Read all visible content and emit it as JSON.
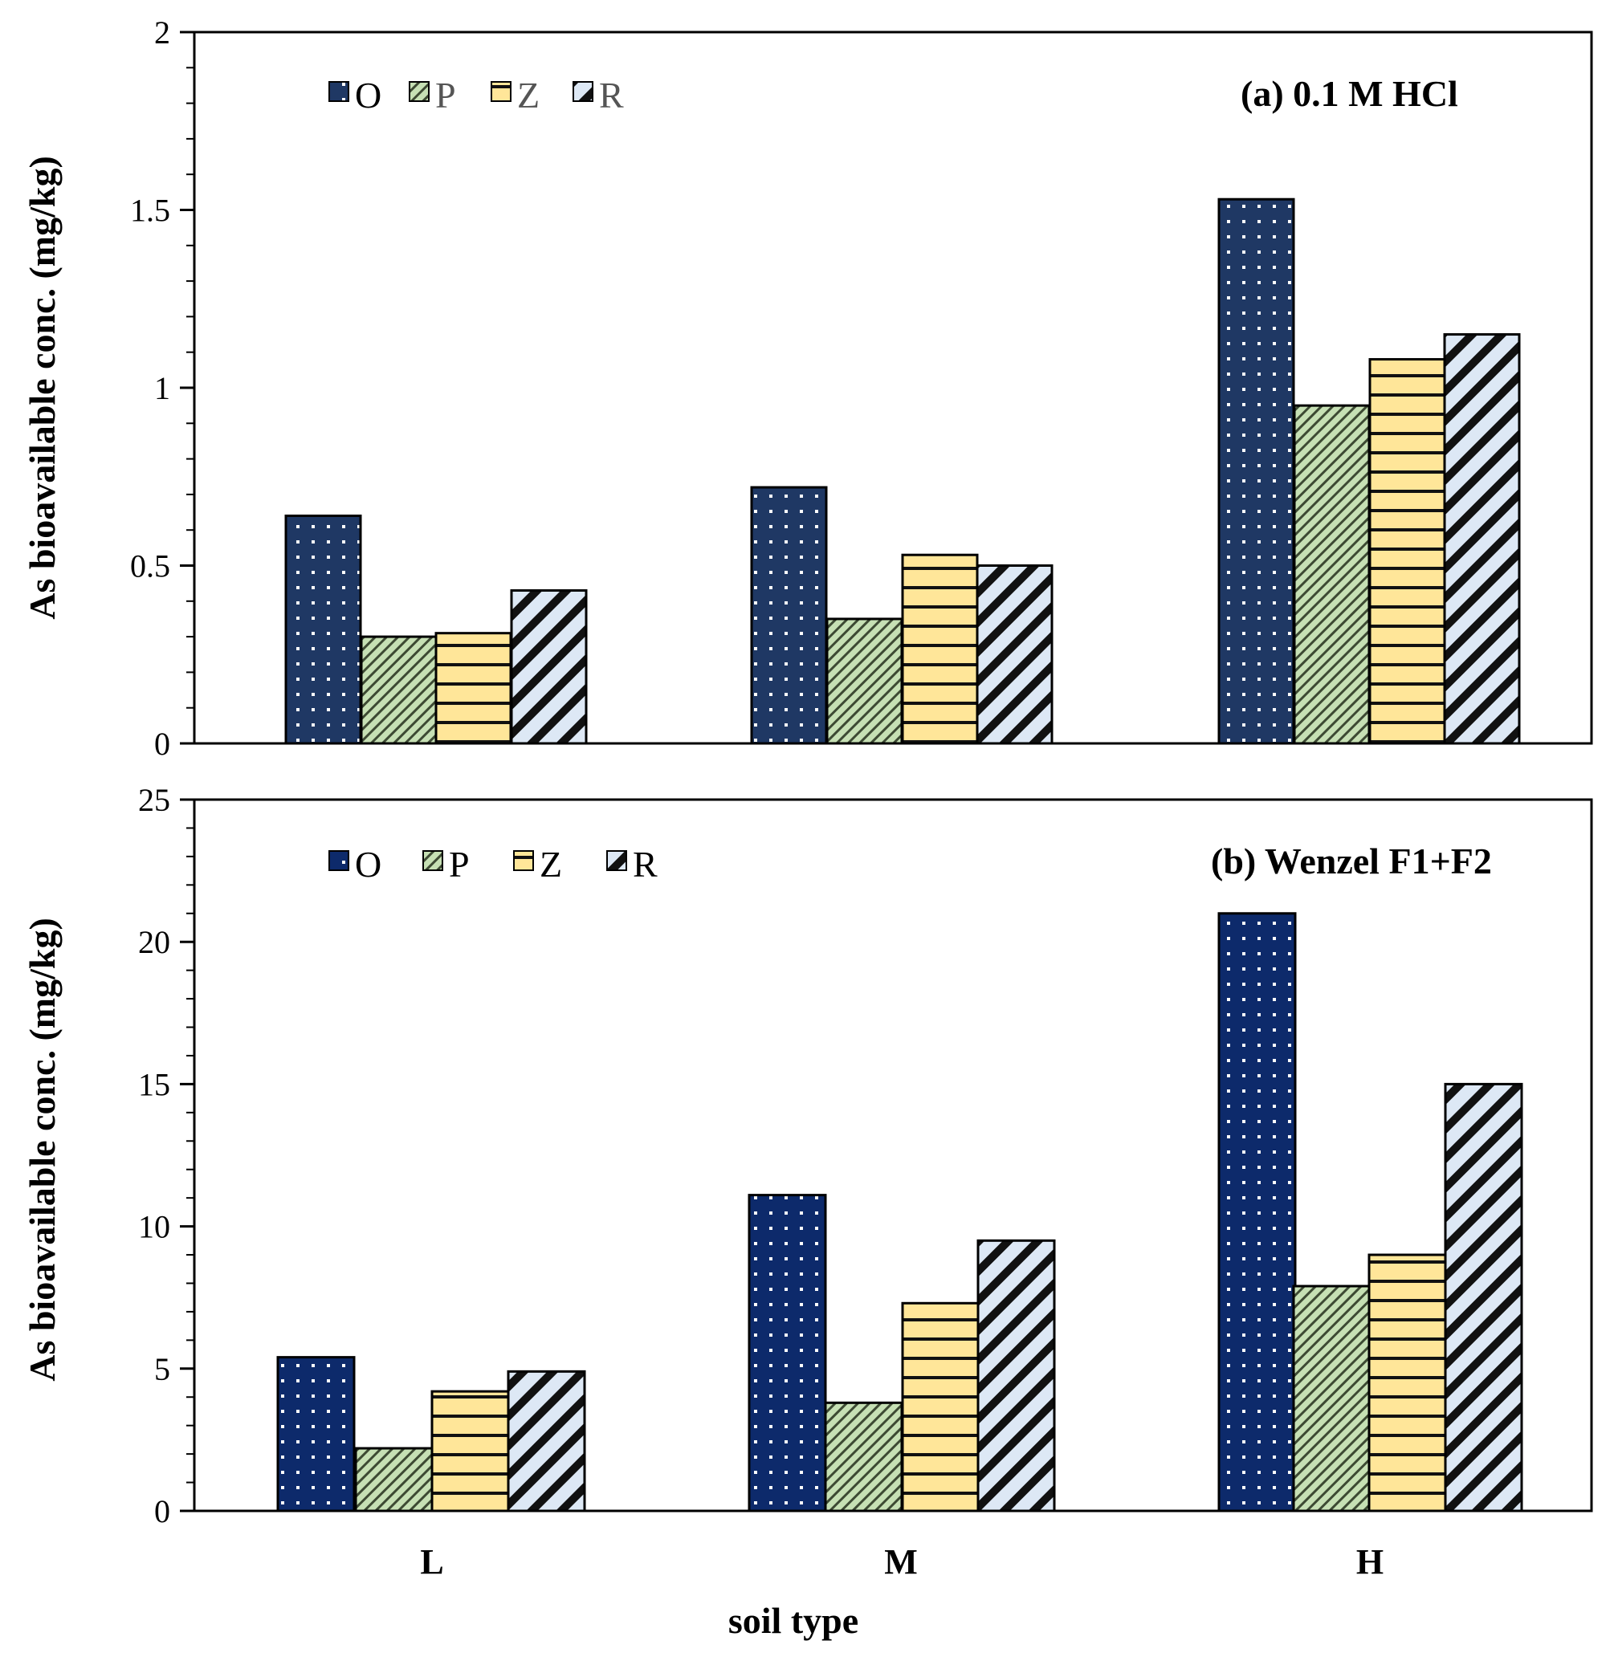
{
  "chart_data": [
    {
      "type": "bar",
      "title": "(a) 0.1 M HCl",
      "xlabel": "",
      "ylabel": "As bioavailable conc. (mg/kg)",
      "categories": [
        "L",
        "M",
        "H"
      ],
      "ylim": [
        0,
        2
      ],
      "yticks": [
        "0",
        "0.5",
        "1",
        "1.5",
        "2"
      ],
      "ytick_values": [
        0,
        0.5,
        1,
        1.5,
        2
      ],
      "minor_step": 0.1,
      "grid": false,
      "legend_position": "top-left",
      "series": [
        {
          "name": "O",
          "values": [
            0.64,
            0.72,
            1.53
          ]
        },
        {
          "name": "P",
          "values": [
            0.3,
            0.35,
            0.95
          ]
        },
        {
          "name": "Z",
          "values": [
            0.31,
            0.53,
            1.08
          ]
        },
        {
          "name": "R",
          "values": [
            0.43,
            0.5,
            1.15
          ]
        }
      ]
    },
    {
      "type": "bar",
      "title": "(b) Wenzel F1+F2",
      "xlabel": "soil type",
      "ylabel": "As bioavailable conc. (mg/kg)",
      "categories": [
        "L",
        "M",
        "H"
      ],
      "ylim": [
        0,
        25
      ],
      "yticks": [
        "0",
        "5",
        "10",
        "15",
        "20",
        "25"
      ],
      "ytick_values": [
        0,
        5,
        10,
        15,
        20,
        25
      ],
      "minor_step": 1,
      "grid": false,
      "legend_position": "top-left",
      "series": [
        {
          "name": "O",
          "values": [
            5.4,
            11.1,
            21.0
          ]
        },
        {
          "name": "P",
          "values": [
            2.2,
            3.8,
            7.9
          ]
        },
        {
          "name": "Z",
          "values": [
            4.2,
            7.3,
            9.0
          ]
        },
        {
          "name": "R",
          "values": [
            4.9,
            9.5,
            15.0
          ]
        }
      ]
    }
  ],
  "colors": {
    "O": "#1f3864",
    "O_b": "#0d2a6b",
    "P": "#c6e0b4",
    "Z": "#ffe699",
    "R": "#dde8f5",
    "outline": "#000000"
  }
}
